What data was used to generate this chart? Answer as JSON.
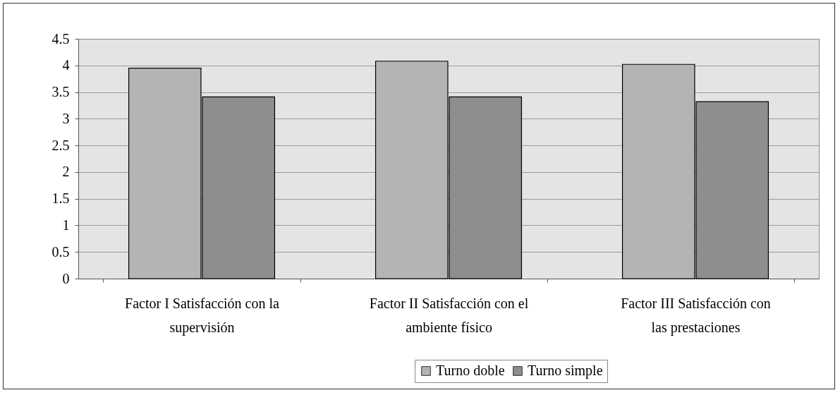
{
  "chart_data": {
    "type": "bar",
    "categories": [
      "Factor I Satisfacción con la supervisión",
      "Factor II Satisfacción con el ambiente físico",
      "Factor III Satisfacción con las prestaciones"
    ],
    "series": [
      {
        "name": "Turno doble",
        "color": "#b4b4b4",
        "values": [
          3.95,
          4.08,
          4.02
        ]
      },
      {
        "name": "Turno simple",
        "color": "#8e8e8e",
        "values": [
          3.41,
          3.41,
          3.32
        ]
      }
    ],
    "ylim": [
      0,
      4.5
    ],
    "yticks": [
      0,
      0.5,
      1,
      1.5,
      2,
      2.5,
      3,
      3.5,
      4,
      4.5
    ],
    "grid": "y",
    "legend": "bottom"
  }
}
